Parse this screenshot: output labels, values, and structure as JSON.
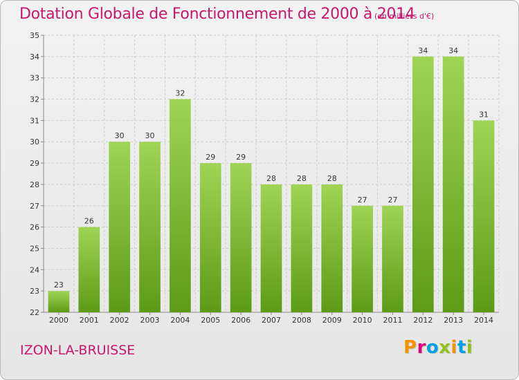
{
  "header": {
    "title": "Dotation Globale de Fonctionnement de 2000 à 2014",
    "subtitle": "(en milliers d'€)"
  },
  "footer": {
    "commune": "IZON-LA-BRUISSE",
    "logo_letters": [
      "P",
      "r",
      "o",
      "x",
      "i",
      "t",
      "i"
    ]
  },
  "colors": {
    "title": "#c8176c",
    "bar_light": "#9fd455",
    "bar_dark": "#5d9b16",
    "grid": "#cccccc",
    "logo": [
      "#f29400",
      "#e2007a",
      "#00a0e3",
      "#95c11f",
      "#f29400",
      "#00a0e3",
      "#95c11f"
    ]
  },
  "chart_data": {
    "type": "bar",
    "categories": [
      "2000",
      "2001",
      "2002",
      "2003",
      "2004",
      "2005",
      "2006",
      "2007",
      "2008",
      "2009",
      "2010",
      "2011",
      "2012",
      "2013",
      "2014"
    ],
    "values": [
      23,
      26,
      30,
      30,
      32,
      29,
      29,
      28,
      28,
      28,
      27,
      27,
      34,
      34,
      31
    ],
    "title": "Dotation Globale de Fonctionnement de 2000 à 2014",
    "subtitle": "(en milliers d'€)",
    "ylim": [
      22,
      35
    ],
    "yticks": [
      22,
      23,
      24,
      25,
      26,
      27,
      28,
      29,
      30,
      31,
      32,
      33,
      34,
      35
    ],
    "grid": true,
    "data_labels": true
  }
}
